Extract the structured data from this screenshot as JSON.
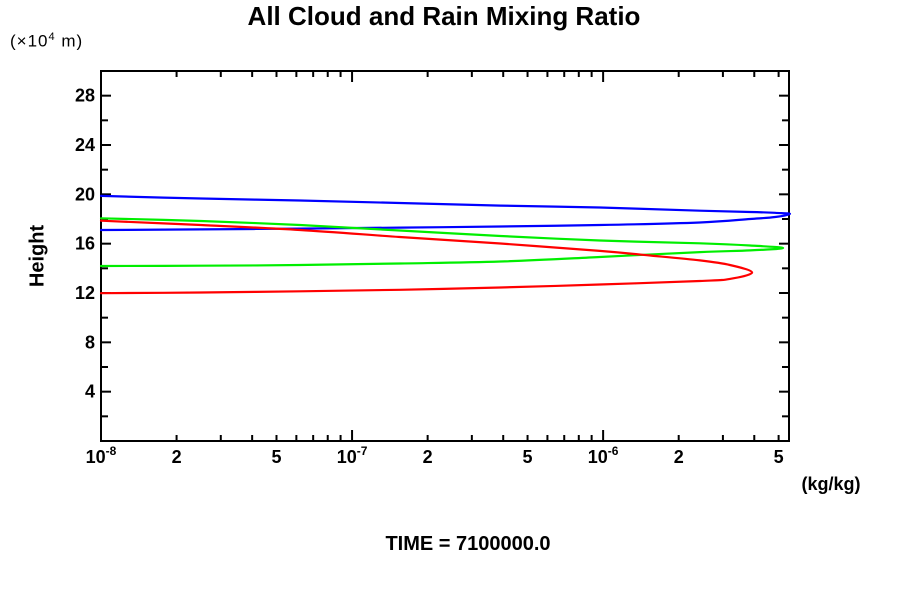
{
  "title": "All Cloud and Rain Mixing Ratio",
  "y_axis_unit": {
    "prefix": "(×10",
    "sup": "4",
    "suffix": " m)"
  },
  "y_axis_label": "Height",
  "x_axis_unit": "(kg/kg)",
  "footer": "TIME = 7100000.0",
  "colors": {
    "axis": "#000000",
    "blue_series": "#0000ff",
    "green_series": "#00ee00",
    "red_series": "#ff0000"
  },
  "chart_data": {
    "type": "line",
    "title": "All Cloud and Rain Mixing Ratio",
    "xlabel": "(kg/kg)",
    "ylabel": "Height (x10^4 m)",
    "x_scale": "log",
    "xlim": [
      1e-08,
      5.5e-06
    ],
    "ylim": [
      0,
      30
    ],
    "grid": false,
    "legend": "none",
    "y_minor_step": 2,
    "y_tick_labels": [
      {
        "v": 4,
        "t": "4"
      },
      {
        "v": 8,
        "t": "8"
      },
      {
        "v": 12,
        "t": "12"
      },
      {
        "v": 16,
        "t": "16"
      },
      {
        "v": 20,
        "t": "20"
      },
      {
        "v": 24,
        "t": "24"
      },
      {
        "v": 28,
        "t": "28"
      }
    ],
    "x_ticks": [
      {
        "v": 1e-08,
        "t": "10",
        "sup": "-8"
      },
      {
        "v": 2e-08,
        "t": "2"
      },
      {
        "v": 5e-08,
        "t": "5"
      },
      {
        "v": 1e-07,
        "t": "10",
        "sup": "-7"
      },
      {
        "v": 2e-07,
        "t": "2"
      },
      {
        "v": 5e-07,
        "t": "5"
      },
      {
        "v": 1e-06,
        "t": "10",
        "sup": "-6"
      },
      {
        "v": 2e-06,
        "t": "2"
      },
      {
        "v": 5e-06,
        "t": "5"
      }
    ],
    "series": [
      {
        "name": "series-blue",
        "color": "#0000ff",
        "points": [
          [
            1e-08,
            19.87
          ],
          [
            2.5e-08,
            19.66
          ],
          [
            6.2e-08,
            19.5
          ],
          [
            1.55e-07,
            19.3
          ],
          [
            3.9e-07,
            19.09
          ],
          [
            9.7e-07,
            18.93
          ],
          [
            2.43e-06,
            18.67
          ],
          [
            3.85e-06,
            18.57
          ],
          [
            4.84e-06,
            18.5
          ],
          [
            5.55e-06,
            18.41
          ],
          [
            4.84e-06,
            18.16
          ],
          [
            3.85e-06,
            18.0
          ],
          [
            2.43e-06,
            17.72
          ],
          [
            9.7e-07,
            17.51
          ],
          [
            3.9e-07,
            17.39
          ],
          [
            1.55e-07,
            17.3
          ],
          [
            6.2e-08,
            17.22
          ],
          [
            2.5e-08,
            17.16
          ],
          [
            1e-08,
            17.11
          ]
        ]
      },
      {
        "name": "series-green",
        "color": "#00ee00",
        "points": [
          [
            1e-08,
            18.06
          ],
          [
            2.5e-08,
            17.84
          ],
          [
            6.2e-08,
            17.51
          ],
          [
            1.55e-07,
            17.07
          ],
          [
            3.9e-07,
            16.62
          ],
          [
            9.7e-07,
            16.26
          ],
          [
            2.43e-06,
            16.03
          ],
          [
            3.85e-06,
            15.85
          ],
          [
            5.21e-06,
            15.65
          ],
          [
            3.85e-06,
            15.45
          ],
          [
            2.43e-06,
            15.32
          ],
          [
            9.7e-07,
            14.92
          ],
          [
            3.9e-07,
            14.55
          ],
          [
            1.55e-07,
            14.39
          ],
          [
            6.2e-08,
            14.27
          ],
          [
            2.5e-08,
            14.21
          ],
          [
            1e-08,
            14.19
          ]
        ]
      },
      {
        "name": "series-red",
        "color": "#ff0000",
        "points": [
          [
            1e-08,
            17.86
          ],
          [
            2.5e-08,
            17.51
          ],
          [
            6.2e-08,
            17.11
          ],
          [
            1.55e-07,
            16.54
          ],
          [
            3.9e-07,
            16.01
          ],
          [
            9.7e-07,
            15.41
          ],
          [
            1.54e-06,
            15.04
          ],
          [
            2.43e-06,
            14.64
          ],
          [
            3.2e-06,
            14.27
          ],
          [
            3.92e-06,
            13.66
          ],
          [
            3.2e-06,
            13.14
          ],
          [
            2.43e-06,
            12.97
          ],
          [
            9.7e-07,
            12.69
          ],
          [
            3.9e-07,
            12.45
          ],
          [
            1.55e-07,
            12.26
          ],
          [
            6.2e-08,
            12.14
          ],
          [
            2.5e-08,
            12.04
          ],
          [
            1e-08,
            11.98
          ]
        ]
      }
    ]
  }
}
